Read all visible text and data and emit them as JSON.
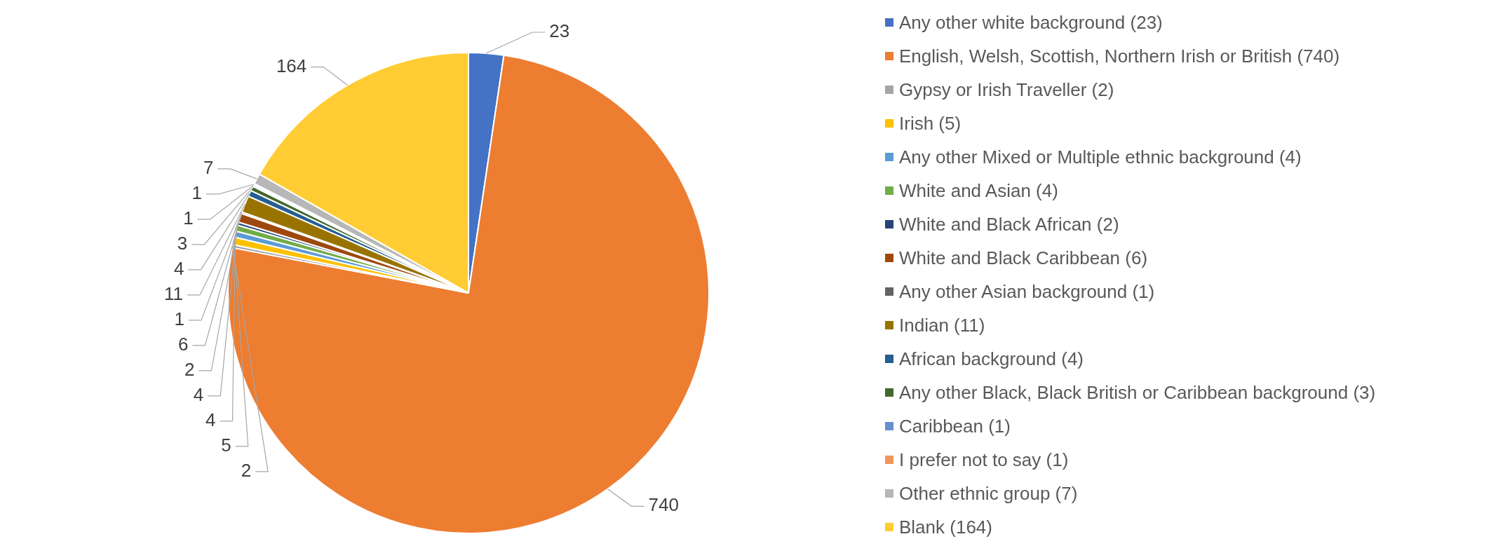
{
  "chart_data": {
    "type": "pie",
    "categories": [
      "Any other white background (23)",
      "English, Welsh, Scottish, Northern Irish or British (740)",
      "Gypsy or Irish Traveller (2)",
      "Irish (5)",
      "Any other Mixed or Multiple ethnic background (4)",
      "White and Asian (4)",
      "White and Black African (2)",
      "White and Black Caribbean (6)",
      "Any other Asian background (1)",
      "Indian (11)",
      "African background (4)",
      "Any other Black, Black British or Caribbean background (3)",
      "Caribbean (1)",
      "I prefer not to say (1)",
      "Other ethnic group (7)",
      "Blank (164)"
    ],
    "values": [
      23,
      740,
      2,
      5,
      4,
      4,
      2,
      6,
      1,
      11,
      4,
      3,
      1,
      1,
      7,
      164
    ],
    "colors": [
      "#4472c4",
      "#ed7d31",
      "#a5a5a5",
      "#ffc000",
      "#5b9bd5",
      "#70ad47",
      "#264478",
      "#9e480e",
      "#636363",
      "#997300",
      "#255e91",
      "#43682b",
      "#698ed0",
      "#f1975a",
      "#b7b7b7",
      "#ffcd33"
    ],
    "data_labels": true,
    "legend": "right"
  }
}
